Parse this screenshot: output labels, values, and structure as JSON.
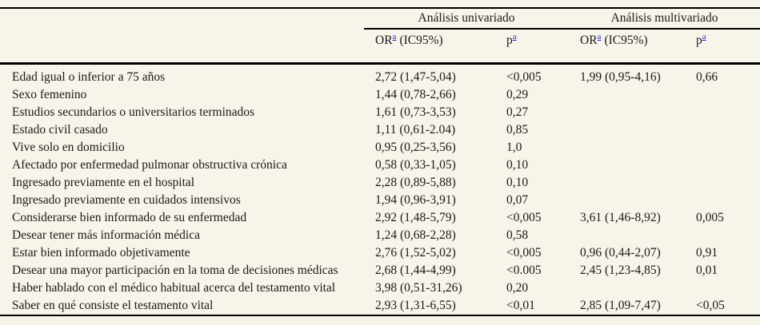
{
  "colors": {
    "background": "#f7f4ea",
    "text": "#1a1a1a",
    "footnote_link": "#2a2ad0",
    "rule": "#000000"
  },
  "table": {
    "group_headers": [
      {
        "label": "Análisis univariado"
      },
      {
        "label": "Análisis multivariado"
      }
    ],
    "sub_headers": {
      "or_label": "OR",
      "ic_label": "(IC95%)",
      "p_label": "p",
      "footnote_marker": "a"
    },
    "rows": [
      {
        "label": "Edad igual o inferior a 75 años",
        "uni_or": "2,72 (1,47-5,04)",
        "uni_p": "<0,005",
        "multi_or": "1,99 (0,95-4,16)",
        "multi_p": "0,66"
      },
      {
        "label": "Sexo femenino",
        "uni_or": "1,44 (0,78-2,66)",
        "uni_p": "0,29",
        "multi_or": "",
        "multi_p": ""
      },
      {
        "label": "Estudios secundarios o universitarios terminados",
        "uni_or": "1,61 (0,73-3,53)",
        "uni_p": "0,27",
        "multi_or": "",
        "multi_p": ""
      },
      {
        "label": "Estado civil casado",
        "uni_or": "1,11 (0,61-2.04)",
        "uni_p": "0,85",
        "multi_or": "",
        "multi_p": ""
      },
      {
        "label": "Vive solo en domicilio",
        "uni_or": "0,95 (0,25-3,56)",
        "uni_p": "1,0",
        "multi_or": "",
        "multi_p": ""
      },
      {
        "label": "Afectado por enfermedad pulmonar obstructiva crónica",
        "uni_or": "0,58 (0,33-1,05)",
        "uni_p": "0,10",
        "multi_or": "",
        "multi_p": ""
      },
      {
        "label": "Ingresado previamente en el hospital",
        "uni_or": "2,28 (0,89-5,88)",
        "uni_p": "0,10",
        "multi_or": "",
        "multi_p": ""
      },
      {
        "label": "Ingresado previamente en cuidados intensivos",
        "uni_or": "1,94 (0,96-3,91)",
        "uni_p": "0,07",
        "multi_or": "",
        "multi_p": ""
      },
      {
        "label": "Considerarse bien informado de su enfermedad",
        "uni_or": "2,92 (1,48-5,79)",
        "uni_p": "<0,005",
        "multi_or": "3,61 (1,46-8,92)",
        "multi_p": "0,005"
      },
      {
        "label": "Desear tener más información médica",
        "uni_or": "1,24 (0,68-2,28)",
        "uni_p": "0,58",
        "multi_or": "",
        "multi_p": ""
      },
      {
        "label": "Estar bien informado objetivamente",
        "uni_or": "2,76 (1,52-5,02)",
        "uni_p": "<0,005",
        "multi_or": "0,96 (0,44-2,07)",
        "multi_p": "0,91"
      },
      {
        "label": "Desear una mayor participación en la toma de decisiones médicas",
        "uni_or": "2,68 (1,44-4,99)",
        "uni_p": "<0.005",
        "multi_or": "2,45 (1,23-4,85)",
        "multi_p": "0,01"
      },
      {
        "label": "Haber hablado con el médico habitual acerca del testamento vital",
        "uni_or": "3,98 (0,51-31,26)",
        "uni_p": "0,20",
        "multi_or": "",
        "multi_p": ""
      },
      {
        "label": "Saber en qué consiste el testamento vital",
        "uni_or": "2,93 (1,31-6,55)",
        "uni_p": "<0,01",
        "multi_or": "2,85 (1,09-7,47)",
        "multi_p": "<0,05"
      }
    ]
  }
}
